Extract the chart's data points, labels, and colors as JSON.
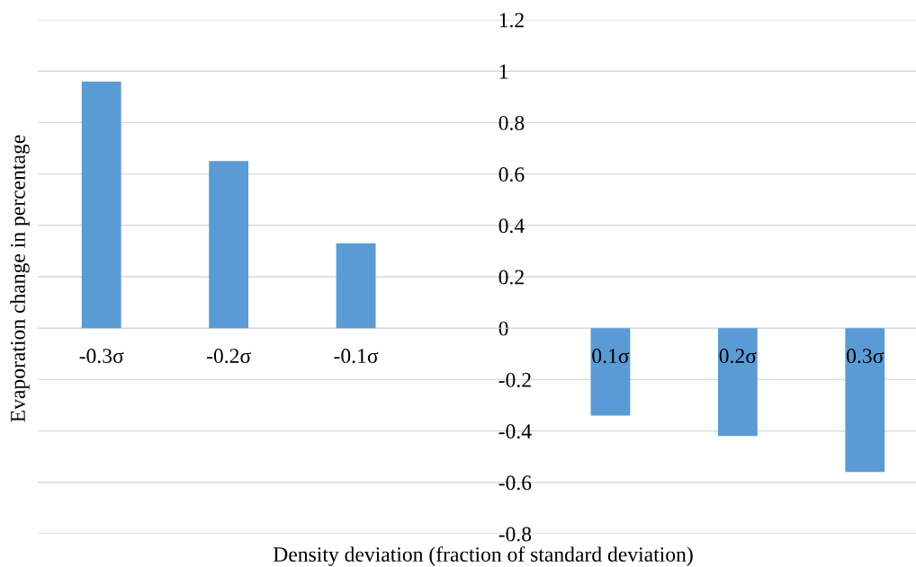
{
  "chart_data": {
    "type": "bar",
    "xlabel": "Density deviation (fraction of standard deviation)",
    "ylabel": "Evaporation change in percentage",
    "categories": [
      "-0.3σ",
      "-0.2σ",
      "-0.1σ",
      null,
      "0.1σ",
      "0.2σ",
      "0.3σ"
    ],
    "values": [
      0.96,
      0.65,
      0.33,
      null,
      -0.34,
      -0.42,
      -0.56
    ],
    "color": "#5b9bd5",
    "ylim": [
      -0.8,
      1.2
    ],
    "yticks": [
      {
        "value": -0.8,
        "label": "-0.8"
      },
      {
        "value": -0.6,
        "label": "-0.6"
      },
      {
        "value": -0.4,
        "label": "-0.4"
      },
      {
        "value": -0.2,
        "label": "-0.2"
      },
      0,
      0.2,
      0.4,
      0.6,
      0.8,
      1,
      1.2
    ],
    "grid": "y",
    "legend": false
  }
}
